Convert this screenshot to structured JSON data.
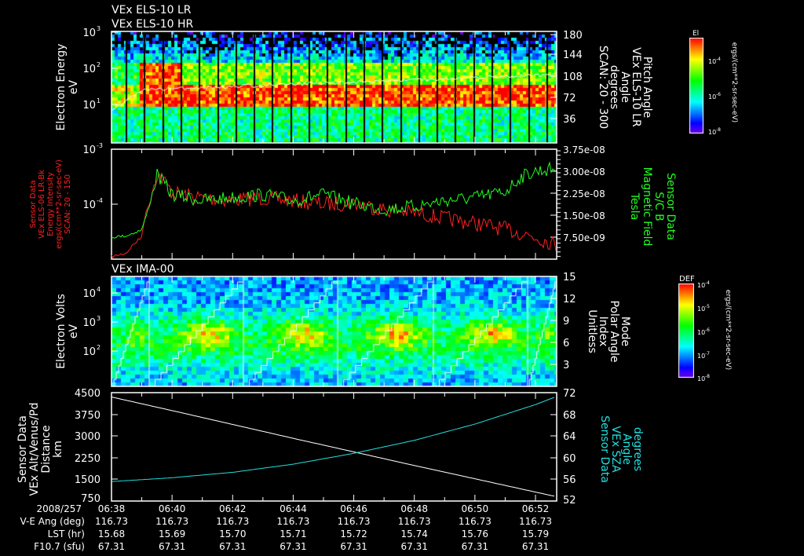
{
  "panels": {
    "p1": {
      "titles": [
        "VEx ELS-10 LR",
        "VEx ELS-10 HR"
      ],
      "left_label": [
        "Electron Energy",
        "eV"
      ],
      "left_ticks": [
        "10",
        "10",
        "10"
      ],
      "left_exps": [
        "1",
        "2",
        "3"
      ],
      "right_label": [
        "Pitch Angle",
        "VEx ELS-10 LR",
        "Angle",
        "degrees",
        "SCAN: 20 - 300"
      ],
      "right_ticks": [
        "36",
        "72",
        "108",
        "144",
        "180"
      ],
      "colorbar": {
        "title": "El",
        "ticks": [
          "10",
          "10",
          "10"
        ],
        "exps": [
          "-4",
          "-6",
          "-8"
        ],
        "unit": "ergs/(cm**2-sr-sec-eV)"
      }
    },
    "p2": {
      "left_label": [
        "Sensor Data",
        "VEx ELS-06 LR-Bk",
        "Energy Intensity",
        "ergs/(cm**2-sr-sec-eV)",
        "SCAN: 20 - 150"
      ],
      "left_ticks": [
        "10",
        "10"
      ],
      "left_exps": [
        "-4",
        "-3"
      ],
      "right_label": [
        "Sensor Data",
        "S/C B",
        "Magnetic Field",
        "Tesla"
      ],
      "right_ticks": [
        "7.50e-09",
        "1.50e-08",
        "2.25e-08",
        "3.00e-08",
        "3.75e-08"
      ]
    },
    "p3": {
      "title": "VEx IMA-00",
      "left_label": [
        "Electron Volts",
        "eV"
      ],
      "left_ticks": [
        "10",
        "10",
        "10"
      ],
      "left_exps": [
        "2",
        "3",
        "4"
      ],
      "right_label": [
        "Mode",
        "Polar Angle",
        "Index",
        "Unitless"
      ],
      "right_ticks": [
        "3",
        "6",
        "9",
        "12",
        "15"
      ],
      "colorbar": {
        "title": "DEF",
        "ticks": [
          "10",
          "10",
          "10",
          "10",
          "10"
        ],
        "exps": [
          "-4",
          "-5",
          "-6",
          "-7",
          "-8"
        ],
        "unit": "ergs/(cm**2-sr-sec-eV)"
      }
    },
    "p4": {
      "left_label": [
        "Sensor Data",
        "VEx Alt/Venus/Pd",
        "Distance",
        "km"
      ],
      "left_ticks": [
        "750",
        "1500",
        "2250",
        "3000",
        "3750",
        "4500"
      ],
      "right_label": [
        "Sensor Data",
        "VEx SZA",
        "Angle",
        "degrees"
      ],
      "right_ticks": [
        "52",
        "56",
        "60",
        "64",
        "68",
        "72"
      ]
    }
  },
  "footer": {
    "row_labels": [
      "2008/257",
      "V-E Ang (deg)",
      "LST (hr)",
      "F10.7 (sfu)"
    ],
    "times": [
      "06:38",
      "06:40",
      "06:42",
      "06:44",
      "06:46",
      "06:48",
      "06:50",
      "06:52"
    ],
    "ve_ang": [
      "116.73",
      "116.73",
      "116.73",
      "116.73",
      "116.73",
      "116.73",
      "116.73",
      "116.73"
    ],
    "lst": [
      "15.68",
      "15.69",
      "15.70",
      "15.71",
      "15.72",
      "15.74",
      "15.76",
      "15.79"
    ],
    "f107": [
      "67.31",
      "67.31",
      "67.31",
      "67.31",
      "67.31",
      "67.31",
      "67.31",
      "67.31"
    ]
  },
  "colors": {
    "energy_intensity": "#ff2020",
    "magnetic_field": "#20ff20",
    "sza": "#20e0e0",
    "altitude": "#ffffff"
  },
  "chart_data": [
    {
      "type": "heatmap",
      "title": "VEx ELS-10 LR / HR",
      "ylabel": "Electron Energy (eV)",
      "ylim": [
        1,
        1000
      ],
      "y2label": "Pitch Angle (deg)",
      "y2lim": [
        0,
        180
      ],
      "xlim": [
        "06:38",
        "06:52:40"
      ],
      "note": "electron spectrogram peaking at ~30-100 eV after 06:39"
    },
    {
      "type": "line",
      "xlim_min": [
        0,
        14.7
      ],
      "series": [
        {
          "name": "Energy Intensity (ergs/(cm**2-sr-sec-eV))",
          "axis": "left",
          "scale": "log",
          "ylim": [
            1e-05,
            0.001
          ],
          "x_min": [
            0,
            0.5,
            1.0,
            1.3,
            1.5,
            2,
            3,
            4,
            5,
            6,
            7,
            8,
            9,
            10,
            11,
            12,
            13,
            14,
            14.7
          ],
          "values": [
            1.1e-05,
            1.3e-05,
            2.5e-05,
            0.00012,
            0.00035,
            0.00016,
            0.00013,
            0.00012,
            0.00013,
            0.000115,
            0.0001,
            0.000105,
            8e-05,
            7e-05,
            5.5e-05,
            4.5e-05,
            3.5e-05,
            2.5e-05,
            1.8e-05
          ]
        },
        {
          "name": "Magnetic Field (Tesla)",
          "axis": "right",
          "scale": "linear",
          "ylim": [
            0,
            3.75e-08
          ],
          "x_min": [
            0,
            0.5,
            1.0,
            1.3,
            1.5,
            2,
            3,
            4,
            5,
            6,
            7,
            8,
            9,
            10,
            11,
            12,
            13,
            13.5,
            14,
            14.7
          ],
          "values": [
            7.5e-09,
            8e-09,
            1e-08,
            2e-08,
            2.9e-08,
            2.2e-08,
            2e-08,
            2.1e-08,
            2.2e-08,
            2e-08,
            2.2e-08,
            1.9e-08,
            1.7e-08,
            1.8e-08,
            2e-08,
            2.1e-08,
            2.3e-08,
            2.8e-08,
            3e-08,
            3.1e-08
          ]
        }
      ]
    },
    {
      "type": "heatmap",
      "title": "VEx IMA-00",
      "ylabel": "Electron Volts (eV)",
      "ylim": [
        6,
        40000
      ],
      "y2label": "Polar Angle Index",
      "y2lim": [
        0,
        15
      ],
      "note": "four polar-angle scan cycles, peak flux ~300-1000 eV"
    },
    {
      "type": "line",
      "x_min": [
        0,
        2,
        4,
        6,
        8,
        10,
        12,
        14,
        14.7
      ],
      "series": [
        {
          "name": "VEx Alt/Venus/Pd (km)",
          "axis": "left",
          "ylim": [
            750,
            4500
          ],
          "values": [
            4350,
            3880,
            3400,
            2920,
            2450,
            1980,
            1520,
            1060,
            900
          ]
        },
        {
          "name": "VEx SZA (degrees)",
          "axis": "right",
          "ylim": [
            52,
            72
          ],
          "values": [
            55.6,
            56.3,
            57.3,
            58.8,
            60.8,
            63.2,
            66.2,
            69.8,
            71.3
          ]
        }
      ]
    }
  ]
}
